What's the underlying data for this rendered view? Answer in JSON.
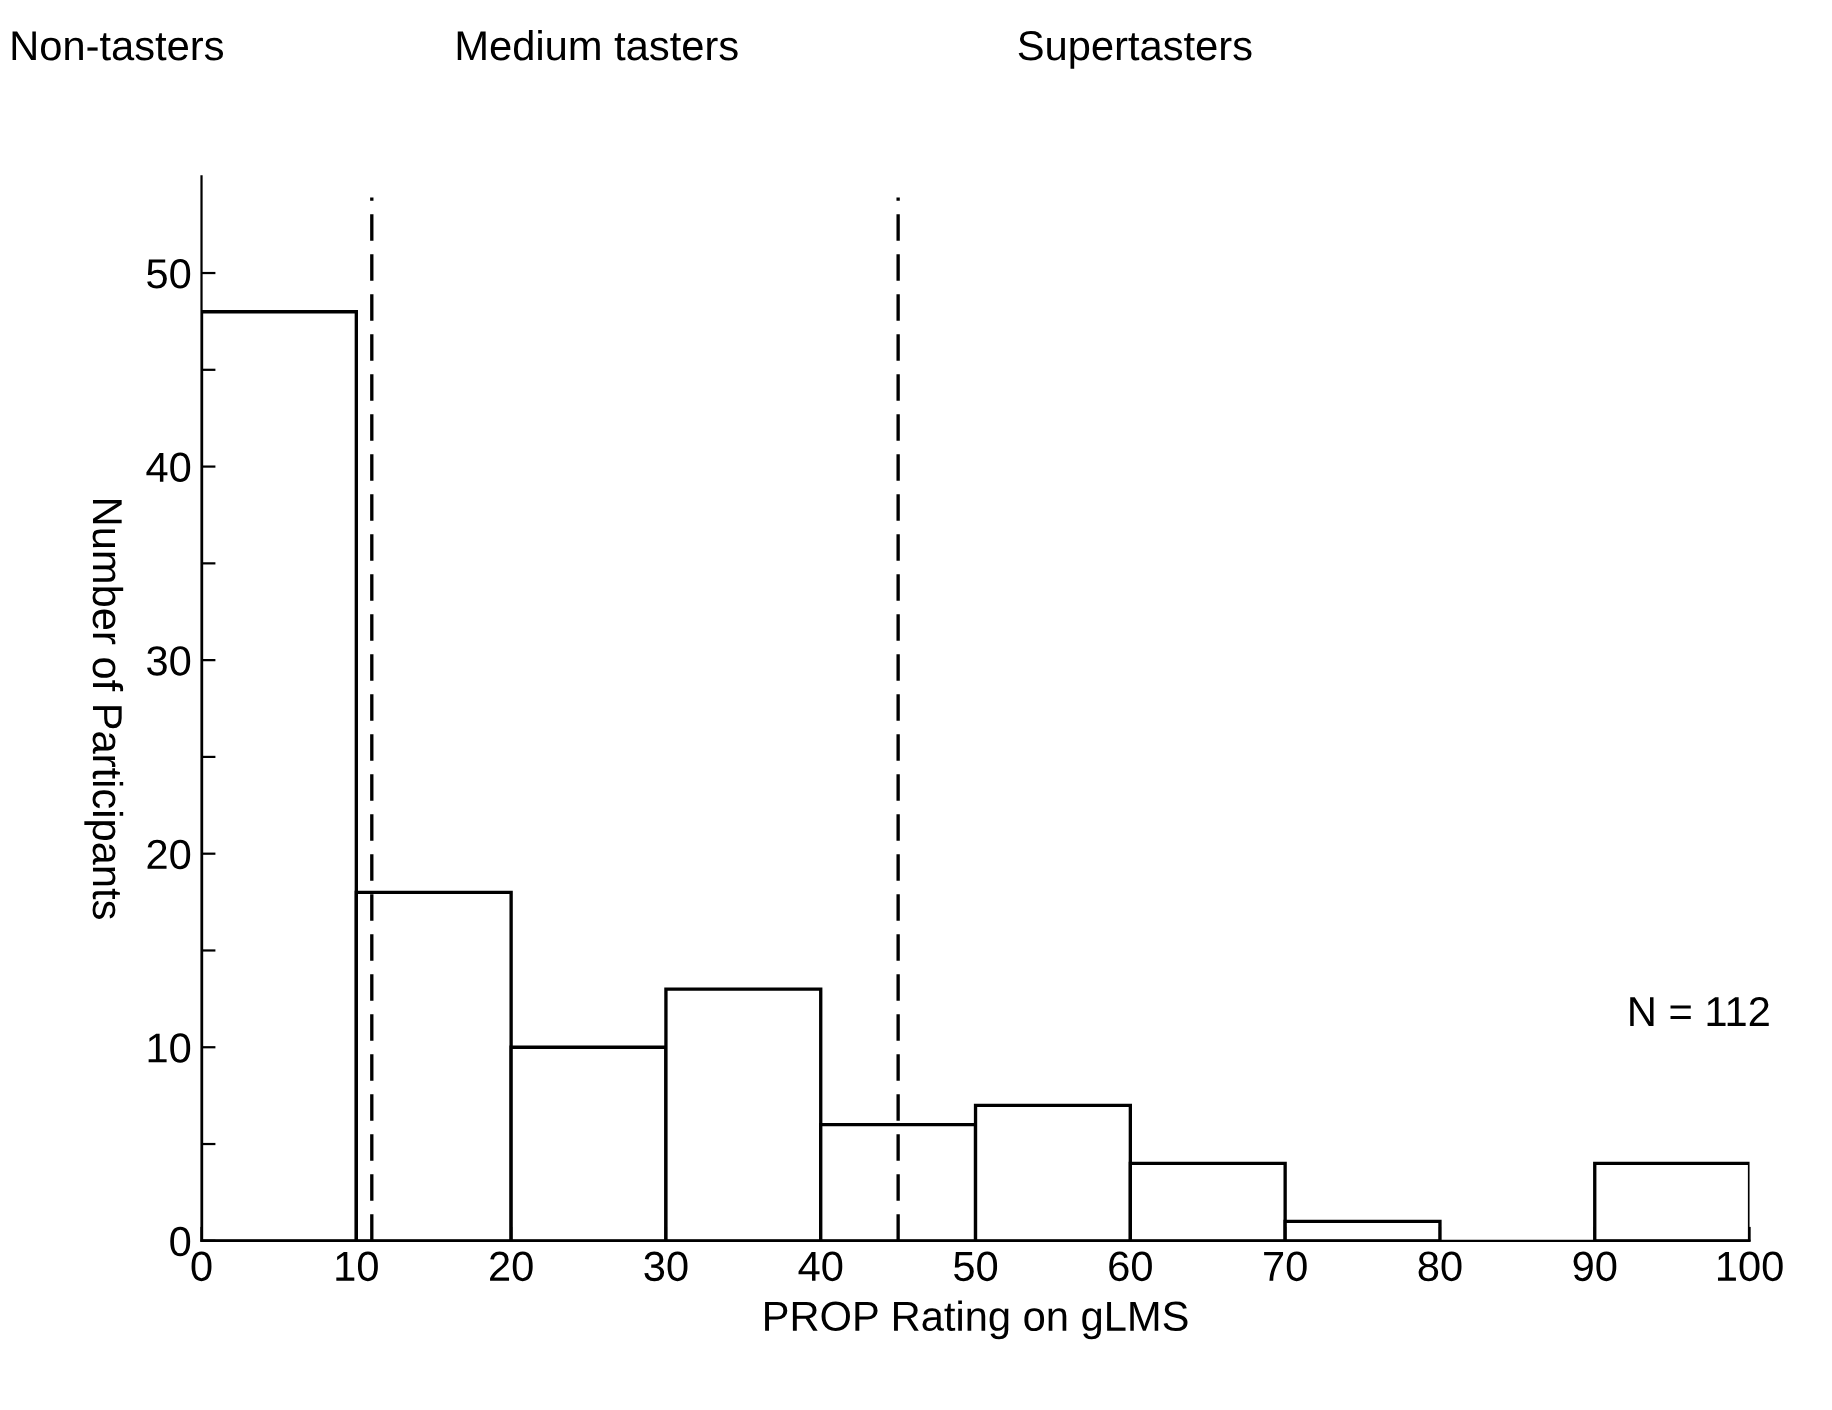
{
  "chart_data": {
    "type": "histogram",
    "xlabel": "PROP Rating on gLMS",
    "ylabel": "Number of Participants",
    "bins": [
      0,
      10,
      20,
      30,
      40,
      50,
      60,
      70,
      80,
      90,
      100
    ],
    "values": [
      48,
      18,
      10,
      13,
      6,
      7,
      4,
      1,
      0,
      4
    ],
    "color": "#ffffff",
    "xlim": [
      0,
      100
    ],
    "xticks": [
      0,
      10,
      20,
      30,
      40,
      50,
      60,
      70,
      80,
      90,
      100
    ],
    "ylim": [
      0,
      55
    ],
    "yticks": [
      0,
      {
        "value": 5,
        "label": null
      },
      10,
      {
        "value": 15,
        "label": null
      },
      20,
      {
        "value": 25,
        "label": null
      },
      30,
      {
        "value": 35,
        "label": null
      },
      40,
      {
        "value": 45,
        "label": null
      },
      50
    ],
    "ref_lines": [
      {
        "axis": "x",
        "value": 11,
        "line_style": "dashed",
        "color": "#000000"
      },
      {
        "axis": "x",
        "value": 45,
        "line_style": "dashed",
        "color": "#000000"
      }
    ],
    "annotations": [
      "Non-tasters",
      "Medium tasters",
      "Supertasters",
      "N = 112"
    ],
    "grid": false,
    "legend": false
  }
}
